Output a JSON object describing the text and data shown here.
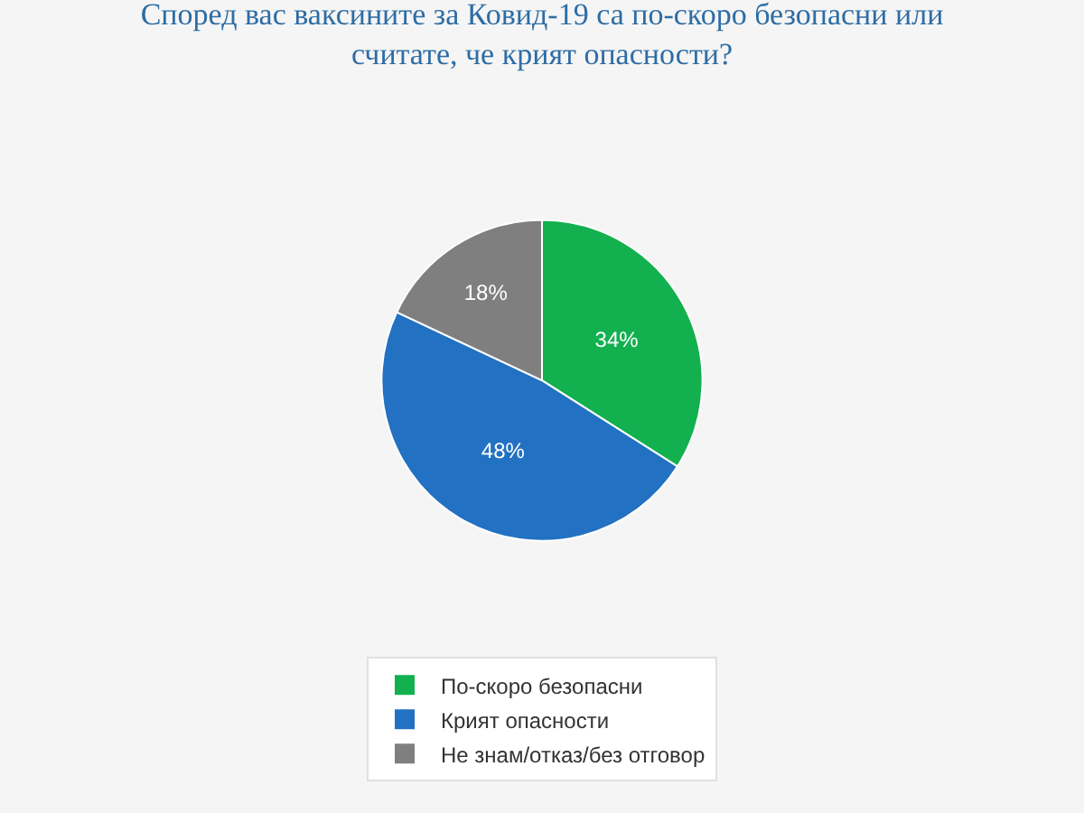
{
  "chart_data": {
    "type": "pie",
    "title": "Според вас ваксините за Ковид-19 са по-скоро безопасни или считате, че крият опасности?",
    "categories": [
      "По-скоро безопасни",
      "Крият опасности",
      "Не знам/отказ/без отговор"
    ],
    "values": [
      34,
      48,
      18
    ],
    "colors": [
      "#13b04f",
      "#2271c2",
      "#7f7f7f"
    ],
    "value_labels": [
      "34%",
      "48%",
      "18%"
    ],
    "legend": "bottom"
  }
}
